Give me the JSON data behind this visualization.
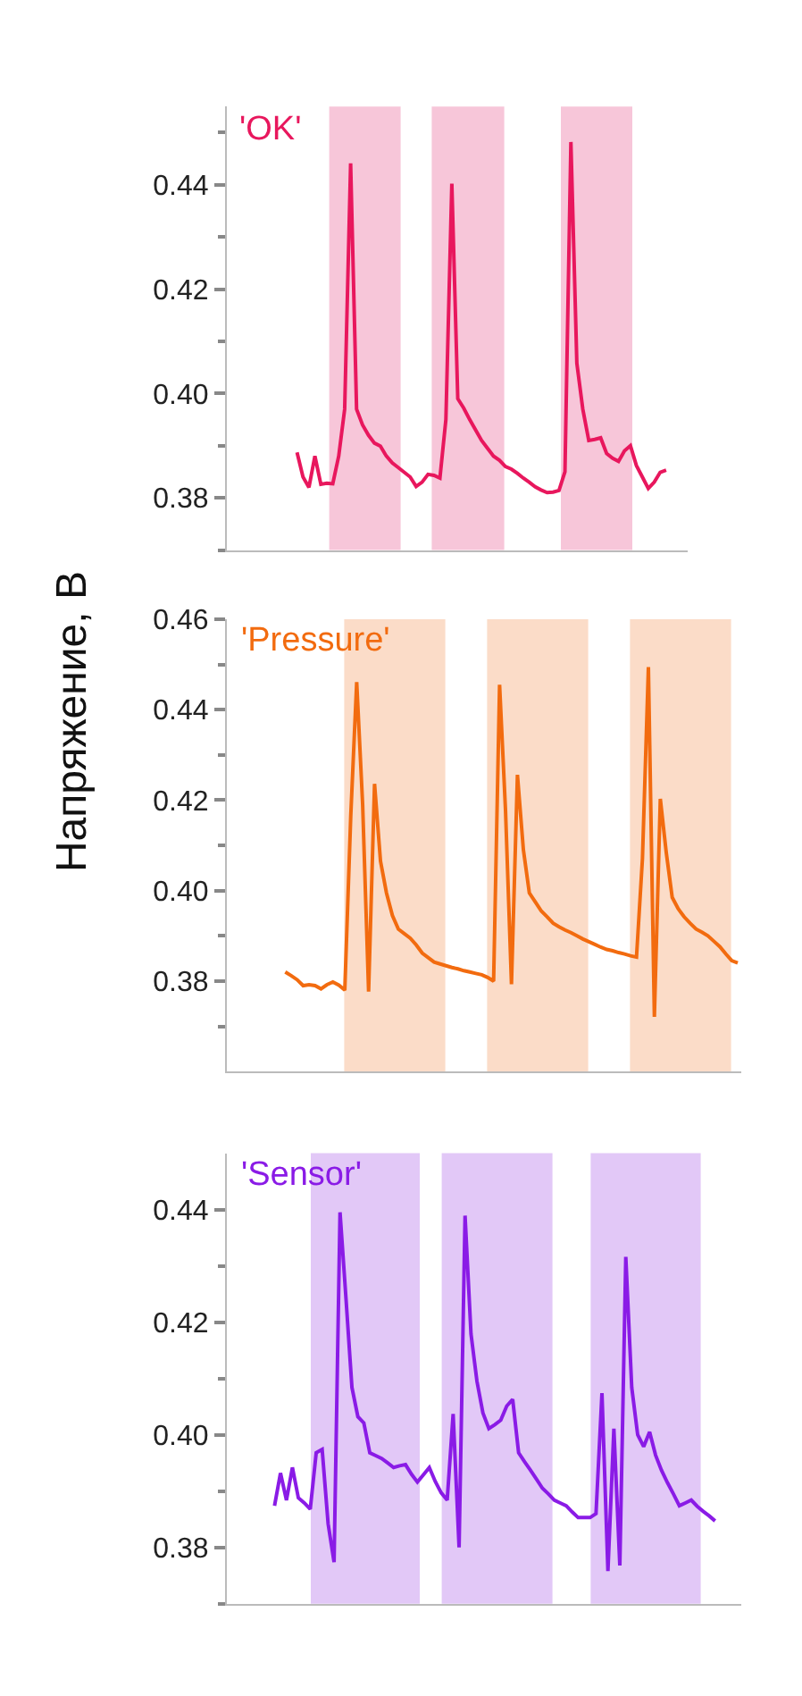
{
  "chart_data": [
    {
      "type": "line",
      "tick_labels": "y",
      "grid": false,
      "legend": "top left",
      "ylim": [
        0.37,
        0.455
      ],
      "categories": [
        null,
        null,
        null,
        null,
        null,
        null,
        null,
        null,
        null,
        null,
        null,
        null,
        null,
        null,
        null,
        null,
        null,
        null,
        null,
        null,
        null,
        null,
        null,
        null,
        null,
        null,
        null,
        null,
        null,
        null,
        null,
        null,
        null,
        null,
        null,
        null,
        null,
        null,
        null,
        null,
        null,
        null,
        null,
        null,
        null,
        null,
        null,
        null,
        null,
        null,
        null,
        null,
        null,
        null,
        null,
        null,
        null,
        null,
        null,
        null,
        null,
        null,
        null
      ],
      "yticks": [
        {
          "value": 0.38,
          "label": "0.38"
        },
        {
          "value": 0.4,
          "label": "0.40"
        },
        {
          "value": 0.42,
          "label": "0.42"
        },
        {
          "value": 0.44,
          "label": "0.44"
        }
      ],
      "series": [
        {
          "name": "'OK'",
          "color": "#e8175d",
          "values": [
            0.3887,
            0.384,
            0.382,
            0.388,
            0.3826,
            0.3828,
            0.3827,
            0.388,
            0.397,
            0.4441,
            0.397,
            0.394,
            0.392,
            0.3905,
            0.3899,
            0.388,
            0.3867,
            0.3858,
            0.3849,
            0.384,
            0.3822,
            0.383,
            0.3845,
            0.3843,
            0.3838,
            0.395,
            0.4402,
            0.399,
            0.3972,
            0.395,
            0.393,
            0.391,
            0.3895,
            0.388,
            0.3872,
            0.386,
            0.3855,
            0.3847,
            0.3838,
            0.383,
            0.3821,
            0.3815,
            0.381,
            0.3811,
            0.3814,
            0.385,
            0.4482,
            0.4058,
            0.397,
            0.391,
            0.3912,
            0.3915,
            0.3885,
            0.3876,
            0.387,
            0.389,
            0.39,
            0.3862,
            0.384,
            0.3818,
            0.383,
            0.3849,
            0.3853
          ]
        }
      ]
    },
    {
      "type": "line",
      "tick_labels": "y",
      "grid": false,
      "legend": "top left",
      "ylabel": "Напряжение, В",
      "ylim": [
        0.36,
        0.46
      ],
      "categories": [
        null,
        null,
        null,
        null,
        null,
        null,
        null,
        null,
        null,
        null,
        null,
        null,
        null,
        null,
        null,
        null,
        null,
        null,
        null,
        null,
        null,
        null,
        null,
        null,
        null,
        null,
        null,
        null,
        null,
        null,
        null,
        null,
        null,
        null,
        null,
        null,
        null,
        null,
        null,
        null,
        null,
        null,
        null,
        null,
        null,
        null,
        null,
        null,
        null,
        null,
        null,
        null,
        null,
        null,
        null,
        null,
        null,
        null,
        null,
        null,
        null,
        null,
        null,
        null,
        null,
        null,
        null,
        null,
        null,
        null,
        null,
        null,
        null,
        null,
        null,
        null,
        null
      ],
      "yticks": [
        {
          "value": 0.38,
          "label": "0.38"
        },
        {
          "value": 0.4,
          "label": "0.40"
        },
        {
          "value": 0.42,
          "label": "0.42"
        },
        {
          "value": 0.44,
          "label": "0.44"
        },
        {
          "value": 0.46,
          "label": "0.46"
        }
      ],
      "series": [
        {
          "name": "'Pressure'",
          "color": "#f26b0f",
          "values": [
            0.382,
            0.3812,
            0.3803,
            0.379,
            0.3792,
            0.379,
            0.3783,
            0.3792,
            0.3798,
            0.3791,
            0.378,
            0.4164,
            0.4461,
            0.419,
            0.3777,
            0.4236,
            0.4065,
            0.3995,
            0.3945,
            0.3915,
            0.3905,
            0.3895,
            0.388,
            0.3862,
            0.3852,
            0.3842,
            0.3838,
            0.3834,
            0.383,
            0.3827,
            0.3823,
            0.382,
            0.3817,
            0.3814,
            0.3808,
            0.38,
            0.4455,
            0.4177,
            0.3793,
            0.4256,
            0.409,
            0.3995,
            0.3975,
            0.3955,
            0.3942,
            0.3928,
            0.392,
            0.3913,
            0.3907,
            0.39,
            0.3893,
            0.3887,
            0.3881,
            0.3875,
            0.387,
            0.3867,
            0.3863,
            0.386,
            0.3856,
            0.3853,
            0.4071,
            0.4494,
            0.3721,
            0.4203,
            0.4084,
            0.3985,
            0.396,
            0.3942,
            0.3928,
            0.3915,
            0.3908,
            0.39,
            0.3888,
            0.3876,
            0.386,
            0.3845,
            0.384
          ]
        }
      ]
    },
    {
      "type": "line",
      "tick_labels": "y",
      "grid": false,
      "legend": "top left",
      "ylim": [
        0.37,
        0.45
      ],
      "categories": [
        null,
        null,
        null,
        null,
        null,
        null,
        null,
        null,
        null,
        null,
        null,
        null,
        null,
        null,
        null,
        null,
        null,
        null,
        null,
        null,
        null,
        null,
        null,
        null,
        null,
        null,
        null,
        null,
        null,
        null,
        null,
        null,
        null,
        null,
        null,
        null,
        null,
        null,
        null,
        null,
        null,
        null,
        null,
        null,
        null,
        null,
        null,
        null,
        null,
        null,
        null,
        null,
        null,
        null,
        null,
        null,
        null,
        null,
        null,
        null,
        null,
        null,
        null,
        null,
        null,
        null,
        null,
        null,
        null,
        null,
        null,
        null,
        null,
        null,
        null
      ],
      "yticks": [
        {
          "value": 0.38,
          "label": "0.38"
        },
        {
          "value": 0.4,
          "label": "0.40"
        },
        {
          "value": 0.42,
          "label": "0.42"
        },
        {
          "value": 0.44,
          "label": "0.44"
        }
      ],
      "series": [
        {
          "name": "'Sensor'",
          "color": "#8a1be6",
          "values": [
            0.3874,
            0.3932,
            0.3884,
            0.3942,
            0.3888,
            0.3879,
            0.3868,
            0.3968,
            0.3974,
            0.3842,
            0.3774,
            0.4395,
            0.4242,
            0.4084,
            0.4032,
            0.4021,
            0.3968,
            0.3963,
            0.3958,
            0.395,
            0.3942,
            0.3945,
            0.3947,
            0.393,
            0.3916,
            0.3929,
            0.3942,
            0.3917,
            0.3897,
            0.3884,
            0.4037,
            0.38,
            0.4389,
            0.4179,
            0.4095,
            0.4039,
            0.4011,
            0.4018,
            0.4026,
            0.4051,
            0.4063,
            0.3968,
            0.3952,
            0.3937,
            0.3921,
            0.3905,
            0.3895,
            0.3884,
            0.3879,
            0.3874,
            0.3863,
            0.3853,
            0.3853,
            0.3853,
            0.386,
            0.4074,
            0.3758,
            0.4011,
            0.3768,
            0.4316,
            0.4084,
            0.4,
            0.3979,
            0.4005,
            0.3964,
            0.3937,
            0.3915,
            0.3895,
            0.3874,
            0.3879,
            0.3884,
            0.3873,
            0.3864,
            0.3856,
            0.3847
          ]
        }
      ]
    }
  ]
}
